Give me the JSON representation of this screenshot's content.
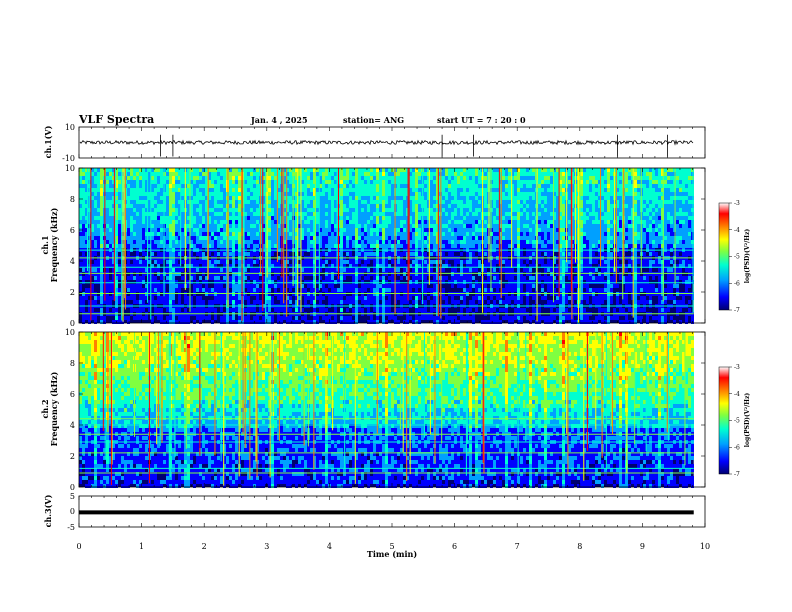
{
  "header": {
    "title": "VLF Spectra",
    "date": "Jan. 4 , 2025",
    "station": "station= ANG",
    "start_ut": "start UT =  7 : 20 : 0"
  },
  "colors": {
    "colormap": [
      "#000070",
      "#0000ff",
      "#00a0ff",
      "#00ffd0",
      "#80ff40",
      "#ffff00",
      "#ff8000",
      "#ff0000",
      "#ffffff"
    ],
    "axis": "#000000",
    "trace": "#000000"
  },
  "chart_data": [
    {
      "type": "line",
      "name": "ch1-waveform",
      "ylabel": "ch.1(V)",
      "ylim": [
        -10,
        10
      ],
      "yticks": [
        "10",
        "-10"
      ],
      "xlim": [
        0,
        10
      ],
      "baseline": 0,
      "noise_amplitude": 1.2,
      "spikes_x": [
        1.3,
        1.5,
        5.8,
        6.3,
        8.6,
        9.4
      ]
    },
    {
      "type": "heatmap",
      "name": "ch1-spectrogram",
      "ylabel": "ch.1\nFrequency (kHz)",
      "xlim": [
        0,
        9.82
      ],
      "ylim": [
        0,
        10
      ],
      "yticks": [
        "0",
        "2",
        "4",
        "6",
        "8",
        "10"
      ],
      "colorbar": {
        "label": "log(PSD)(V²/Hz)",
        "range": [
          -7,
          -3
        ],
        "ticks": [
          "-3",
          "-4",
          "-5",
          "-6",
          "-7"
        ]
      },
      "intensity_profile": "weak below 5 kHz, moderate above",
      "horizontal_lines_khz": [
        0.6,
        1.1,
        1.9,
        2.6,
        3.2,
        3.6,
        4.2,
        4.7
      ]
    },
    {
      "type": "heatmap",
      "name": "ch2-spectrogram",
      "ylabel": "ch.2\nFrequency (kHz)",
      "xlim": [
        0,
        9.82
      ],
      "ylim": [
        0,
        10
      ],
      "yticks": [
        "0",
        "2",
        "4",
        "6",
        "8",
        "10"
      ],
      "colorbar": {
        "label": "log(PSD)(V²/Hz)",
        "range": [
          -7,
          -3
        ],
        "ticks": [
          "-3",
          "-4",
          "-5",
          "-6",
          "-7"
        ]
      },
      "intensity_profile": "strong above 6 kHz, weak below 4 kHz",
      "horizontal_lines_khz": [
        0.9,
        1.2,
        2.2,
        2.9,
        3.4,
        4.0,
        4.4
      ]
    },
    {
      "type": "line",
      "name": "ch3-waveform",
      "ylabel": "ch.3(V)",
      "ylim": [
        -5,
        5
      ],
      "yticks": [
        "5",
        "0",
        "-5"
      ],
      "xlim": [
        0,
        9.82
      ],
      "baseline": -0.3,
      "noise_amplitude": 0
    }
  ],
  "xaxis": {
    "label": "Time (min)",
    "ticks": [
      "0",
      "1",
      "2",
      "3",
      "4",
      "5",
      "6",
      "7",
      "8",
      "9",
      "10"
    ],
    "range": [
      0,
      10
    ]
  }
}
